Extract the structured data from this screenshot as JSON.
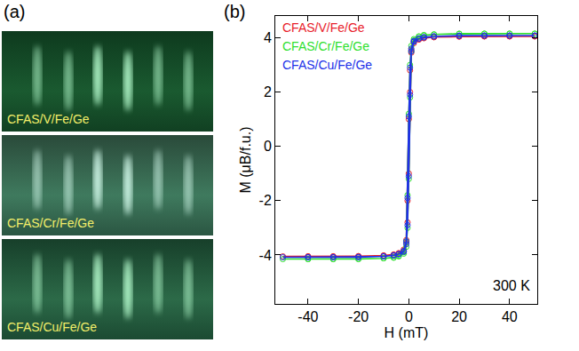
{
  "panels": {
    "a": {
      "label": "(a)",
      "images": [
        "CFAS/V/Fe/Ge",
        "CFAS/Cr/Fe/Ge",
        "CFAS/Cu/Fe/Ge"
      ]
    },
    "b": {
      "label": "(b)"
    }
  },
  "chart_data": {
    "type": "scatter",
    "x_label": "H (mT)",
    "y_label": "M (μB/f.u.)",
    "annotations": [
      "300 K"
    ],
    "xlim": [
      -53,
      51
    ],
    "xticks": [
      -40,
      -20,
      0,
      20,
      40
    ],
    "ylim": [
      -5.8,
      4.8
    ],
    "yticks": [
      -4,
      -2,
      0,
      2,
      4
    ],
    "grid": false,
    "legend": "upper left",
    "marker": "open circle",
    "line_style": "solid",
    "series": [
      {
        "name": "CFAS/V/Fe/Ge",
        "color": "#e8202a",
        "x": [
          50,
          40,
          30,
          20,
          10,
          6,
          4,
          2,
          1,
          0.5,
          0,
          -0.5,
          -1,
          -2,
          -4,
          -6,
          -10,
          -20,
          -30,
          -40,
          -50,
          -40,
          -30,
          -20,
          -10,
          -6,
          -4,
          -2,
          -1,
          -0.5,
          0,
          0.5,
          1,
          2,
          4,
          6,
          10,
          20,
          30,
          40,
          50
        ],
        "values": [
          4.05,
          4.05,
          4.05,
          4.04,
          4.02,
          4.0,
          3.95,
          3.85,
          3.55,
          2.8,
          1.0,
          -2.0,
          -3.45,
          -3.8,
          -3.93,
          -3.98,
          -4.02,
          -4.05,
          -4.05,
          -4.05,
          -4.05,
          -4.05,
          -4.05,
          -4.04,
          -4.02,
          -4.0,
          -3.95,
          -3.85,
          -3.55,
          -2.8,
          -1.0,
          2.0,
          3.45,
          3.8,
          3.93,
          3.98,
          4.02,
          4.05,
          4.05,
          4.05,
          4.05
        ]
      },
      {
        "name": "CFAS/Cr/Fe/Ge",
        "color": "#2ee02e",
        "x": [
          50,
          40,
          30,
          20,
          10,
          6,
          4,
          2,
          1,
          0.5,
          0,
          -0.5,
          -1,
          -2,
          -4,
          -6,
          -10,
          -20,
          -30,
          -40,
          -50,
          -40,
          -30,
          -20,
          -10,
          -6,
          -4,
          -2,
          -1,
          -0.5,
          0,
          0.5,
          1,
          2,
          4,
          6,
          10,
          20,
          30,
          40,
          50
        ],
        "values": [
          4.15,
          4.15,
          4.15,
          4.14,
          4.12,
          4.1,
          4.05,
          3.95,
          3.7,
          3.0,
          1.2,
          -1.8,
          -3.5,
          -3.9,
          -4.03,
          -4.08,
          -4.12,
          -4.15,
          -4.15,
          -4.15,
          -4.15,
          -4.15,
          -4.15,
          -4.14,
          -4.12,
          -4.1,
          -4.05,
          -3.95,
          -3.7,
          -3.0,
          -1.2,
          1.8,
          3.5,
          3.9,
          4.03,
          4.08,
          4.12,
          4.15,
          4.15,
          4.15,
          4.15
        ]
      },
      {
        "name": "CFAS/Cu/Fe/Ge",
        "color": "#2030e8",
        "x": [
          50,
          40,
          30,
          20,
          10,
          6,
          4,
          2,
          1,
          0.5,
          0,
          -0.5,
          -1,
          -2,
          -4,
          -6,
          -10,
          -20,
          -30,
          -40,
          -50,
          -40,
          -30,
          -20,
          -10,
          -6,
          -4,
          -2,
          -1,
          -0.5,
          0,
          0.5,
          1,
          2,
          4,
          6,
          10,
          20,
          30,
          40,
          50
        ],
        "values": [
          4.08,
          4.08,
          4.08,
          4.07,
          4.05,
          4.02,
          3.97,
          3.88,
          3.6,
          2.9,
          1.1,
          -1.9,
          -3.5,
          -3.85,
          -3.97,
          -4.01,
          -4.05,
          -4.08,
          -4.08,
          -4.08,
          -4.08,
          -4.08,
          -4.08,
          -4.07,
          -4.05,
          -4.02,
          -3.97,
          -3.88,
          -3.6,
          -2.9,
          -1.1,
          1.9,
          3.5,
          3.85,
          3.97,
          4.01,
          4.05,
          4.08,
          4.08,
          4.08,
          4.08
        ]
      }
    ]
  }
}
